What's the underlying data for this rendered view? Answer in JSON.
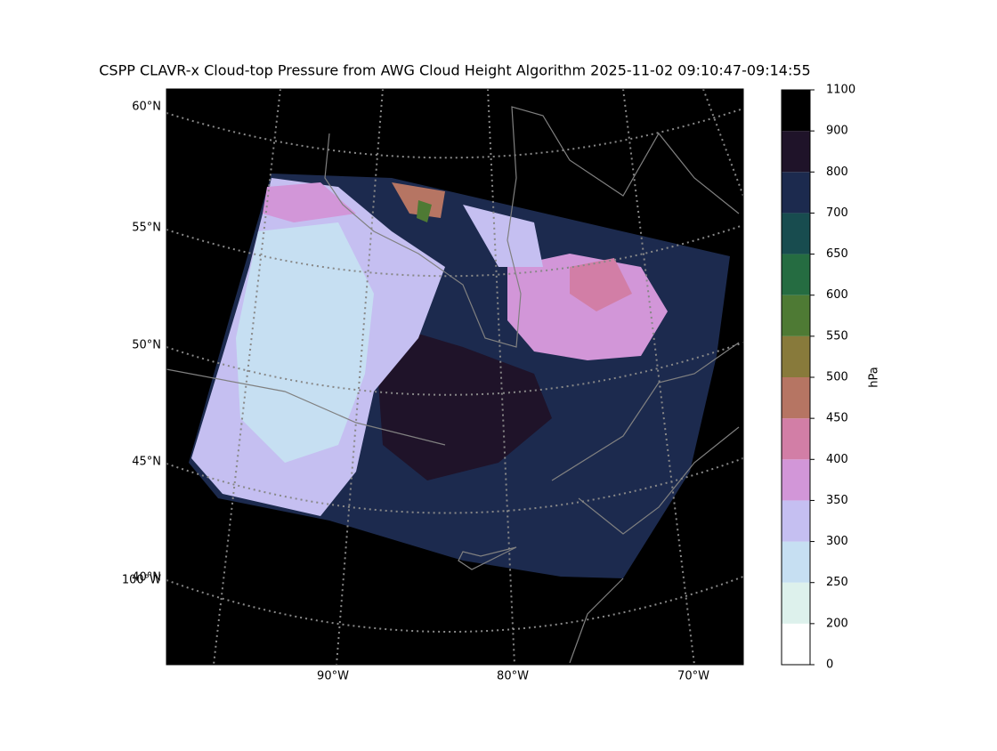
{
  "title": "CSPP CLAVR-x Cloud-top Pressure from AWG Cloud Height Algorithm 2025-11-02 09:10:47-09:14:55",
  "map": {
    "lat_labels": [
      "60°N",
      "55°N",
      "50°N",
      "45°N",
      "40°N"
    ],
    "lon_labels": [
      "100°W",
      "90°W",
      "80°W",
      "70°W"
    ]
  },
  "colorbar": {
    "label": "hPa",
    "ticks": [
      0,
      200,
      250,
      300,
      350,
      400,
      450,
      500,
      550,
      600,
      650,
      700,
      800,
      900,
      1100
    ],
    "colors": [
      "#ffffff",
      "#ddf1ec",
      "#c6dff2",
      "#c5bff1",
      "#d296d8",
      "#d27ea6",
      "#b67563",
      "#887a3b",
      "#4e7a34",
      "#256c41",
      "#184c4f",
      "#1c2a4e",
      "#1f1329",
      "#000000"
    ]
  }
}
